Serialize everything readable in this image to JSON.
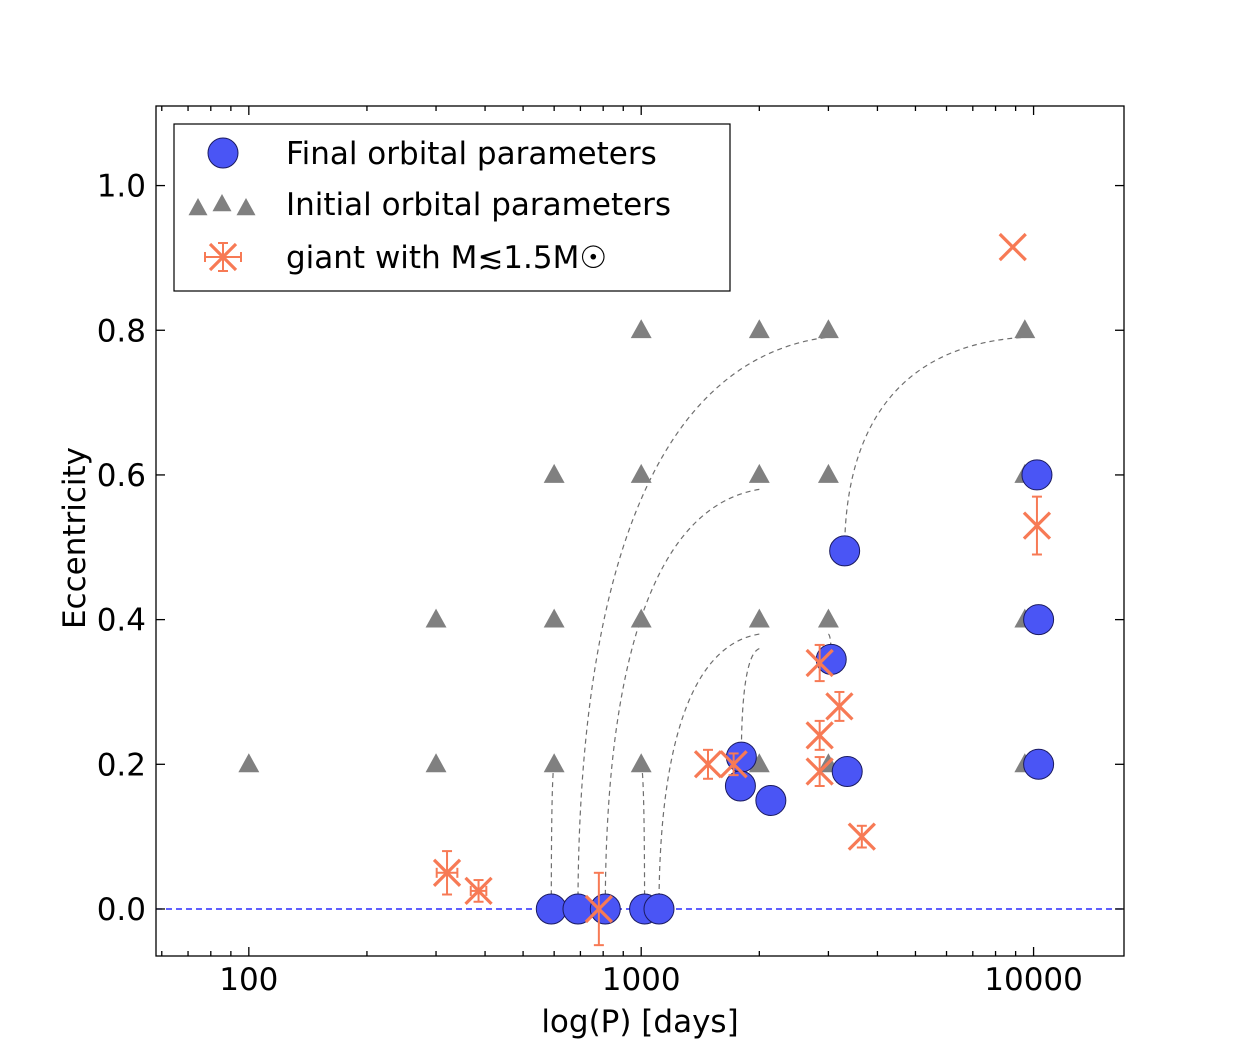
{
  "chart_data": {
    "type": "scatter",
    "x_scale": "log",
    "xlim": [
      58,
      17000
    ],
    "ylim": [
      -0.065,
      1.11
    ],
    "xlabel": "log(P) [days]",
    "ylabel": "Eccentricity",
    "x_tick_values": [
      100,
      1000,
      10000
    ],
    "x_tick_labels": [
      "100",
      "1000",
      "10000"
    ],
    "y_tick_values": [
      0.0,
      0.2,
      0.4,
      0.6,
      0.8,
      1.0
    ],
    "y_tick_labels": [
      "0.0",
      "0.2",
      "0.4",
      "0.6",
      "0.8",
      "1.0"
    ],
    "reference_line": {
      "y": 0.0,
      "style": "dashed",
      "color": "#0000ff"
    },
    "legend": {
      "placement": "top-left",
      "entries": [
        {
          "label": "Final orbital parameters",
          "marker": "circle"
        },
        {
          "label": "Initial orbital parameters",
          "marker": "triangle"
        },
        {
          "label": "giant with M≲1.5M☉",
          "marker": "x-errorbar"
        }
      ]
    },
    "series": [
      {
        "name": "Initial orbital parameters",
        "marker": "triangle",
        "color": "#808080",
        "points": [
          {
            "x": 100,
            "y": 0.2
          },
          {
            "x": 300,
            "y": 0.2
          },
          {
            "x": 300,
            "y": 0.4
          },
          {
            "x": 600,
            "y": 0.2
          },
          {
            "x": 600,
            "y": 0.4
          },
          {
            "x": 600,
            "y": 0.6
          },
          {
            "x": 1000,
            "y": 0.2
          },
          {
            "x": 1000,
            "y": 0.4
          },
          {
            "x": 1000,
            "y": 0.6
          },
          {
            "x": 1000,
            "y": 0.8
          },
          {
            "x": 2000,
            "y": 0.2
          },
          {
            "x": 2000,
            "y": 0.4
          },
          {
            "x": 2000,
            "y": 0.6
          },
          {
            "x": 2000,
            "y": 0.8
          },
          {
            "x": 3000,
            "y": 0.2
          },
          {
            "x": 3000,
            "y": 0.4
          },
          {
            "x": 3000,
            "y": 0.6
          },
          {
            "x": 3000,
            "y": 0.8
          },
          {
            "x": 9500,
            "y": 0.2
          },
          {
            "x": 9500,
            "y": 0.4
          },
          {
            "x": 9500,
            "y": 0.6
          },
          {
            "x": 9500,
            "y": 0.8
          }
        ]
      },
      {
        "name": "Final orbital parameters",
        "marker": "circle",
        "color": "#4a55f5",
        "points": [
          {
            "x": 590,
            "y": 0.0
          },
          {
            "x": 690,
            "y": 0.0
          },
          {
            "x": 810,
            "y": 0.0
          },
          {
            "x": 1020,
            "y": 0.0
          },
          {
            "x": 1110,
            "y": 0.0
          },
          {
            "x": 1800,
            "y": 0.21
          },
          {
            "x": 1790,
            "y": 0.17
          },
          {
            "x": 2140,
            "y": 0.15
          },
          {
            "x": 3050,
            "y": 0.345
          },
          {
            "x": 3300,
            "y": 0.495
          },
          {
            "x": 3350,
            "y": 0.19
          },
          {
            "x": 10300,
            "y": 0.2
          },
          {
            "x": 10300,
            "y": 0.4
          },
          {
            "x": 10200,
            "y": 0.6
          }
        ]
      },
      {
        "name": "giant with M≲1.5M☉",
        "marker": "x-errorbar",
        "color": "#f77a55",
        "points": [
          {
            "x": 320,
            "y": 0.05,
            "yerr": 0.03,
            "xerr": 20
          },
          {
            "x": 385,
            "y": 0.025,
            "yerr": 0.015,
            "xerr": 18
          },
          {
            "x": 780,
            "y": 0.0,
            "yerr": 0.05,
            "xerr": 0
          },
          {
            "x": 1480,
            "y": 0.2,
            "yerr": 0.02,
            "xerr": 0
          },
          {
            "x": 1720,
            "y": 0.2,
            "yerr": 0.015,
            "xerr": 0
          },
          {
            "x": 2850,
            "y": 0.34,
            "yerr": 0.025,
            "xerr": 0
          },
          {
            "x": 2850,
            "y": 0.24,
            "yerr": 0.02,
            "xerr": 0
          },
          {
            "x": 2850,
            "y": 0.19,
            "yerr": 0.02,
            "xerr": 0
          },
          {
            "x": 3200,
            "y": 0.28,
            "yerr": 0.02,
            "xerr": 0
          },
          {
            "x": 3650,
            "y": 0.1,
            "yerr": 0.015,
            "xerr": 0
          },
          {
            "x": 8850,
            "y": 0.915,
            "yerr": 0,
            "xerr": 0
          },
          {
            "x": 10200,
            "y": 0.53,
            "yerr": 0.04,
            "xerr": 0
          }
        ]
      }
    ],
    "tracks": [
      {
        "from": {
          "x": 600,
          "y": 0.2
        },
        "to": {
          "x": 590,
          "y": 0.0
        }
      },
      {
        "from": {
          "x": 1000,
          "y": 0.2
        },
        "to": {
          "x": 1020,
          "y": 0.0
        }
      },
      {
        "from": {
          "x": 2950,
          "y": 0.79
        },
        "to": {
          "x": 690,
          "y": 0.0
        }
      },
      {
        "from": {
          "x": 2000,
          "y": 0.58
        },
        "to": {
          "x": 810,
          "y": 0.0
        }
      },
      {
        "from": {
          "x": 2000,
          "y": 0.38
        },
        "to": {
          "x": 1110,
          "y": 0.0
        }
      },
      {
        "from": {
          "x": 2000,
          "y": 0.36
        },
        "to": {
          "x": 1800,
          "y": 0.21
        }
      },
      {
        "from": {
          "x": 3000,
          "y": 0.38
        },
        "to": {
          "x": 3050,
          "y": 0.345
        }
      },
      {
        "from": {
          "x": 9300,
          "y": 0.79
        },
        "to": {
          "x": 3300,
          "y": 0.495
        }
      }
    ]
  }
}
